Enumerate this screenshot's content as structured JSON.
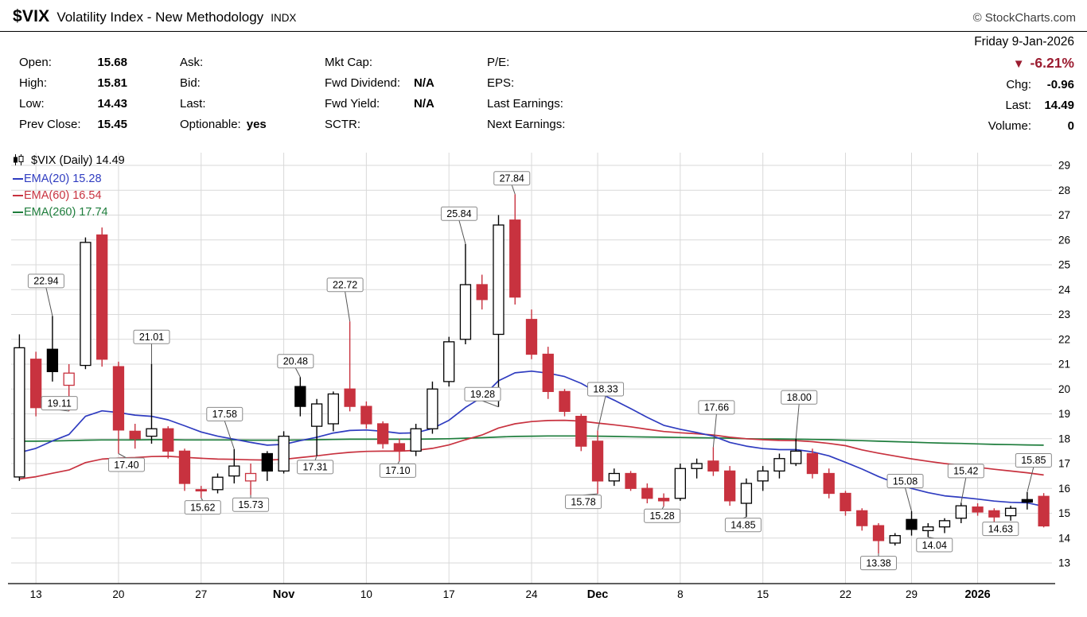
{
  "header": {
    "symbol": "$VIX",
    "name": "Volatility Index - New Methodology",
    "exchange": "INDX",
    "credit": "© StockCharts.com",
    "date": "Friday 9-Jan-2026"
  },
  "quote": {
    "col1": [
      {
        "label": "Open:",
        "value": "15.68"
      },
      {
        "label": "High:",
        "value": "15.81"
      },
      {
        "label": "Low:",
        "value": "14.43"
      },
      {
        "label": "Prev Close:",
        "value": "15.45"
      }
    ],
    "col2": [
      {
        "label": "Ask:",
        "value": ""
      },
      {
        "label": "Bid:",
        "value": ""
      },
      {
        "label": "Last:",
        "value": ""
      },
      {
        "label": "Optionable:",
        "value": "yes"
      }
    ],
    "col3": [
      {
        "label": "Mkt Cap:",
        "value": ""
      },
      {
        "label": "Fwd Dividend:",
        "value": "N/A"
      },
      {
        "label": "Fwd Yield:",
        "value": "N/A"
      },
      {
        "label": "SCTR:",
        "value": ""
      }
    ],
    "col4": [
      {
        "label": "P/E:",
        "value": ""
      },
      {
        "label": "EPS:",
        "value": ""
      },
      {
        "label": "Last Earnings:",
        "value": ""
      },
      {
        "label": "Next Earnings:",
        "value": ""
      }
    ],
    "change": {
      "arrow": "▼",
      "pct": "-6.21%",
      "color": "#9b1c30",
      "rows": [
        {
          "label": "Chg:",
          "value": "-0.96"
        },
        {
          "label": "Last:",
          "value": "14.49"
        },
        {
          "label": "Volume:",
          "value": "0"
        }
      ]
    }
  },
  "legend": {
    "main": "$VIX (Daily) 14.49",
    "emas": [
      {
        "label": "EMA(20) 15.28",
        "color": "#2f3cc0"
      },
      {
        "label": "EMA(60) 16.54",
        "color": "#c8323f"
      },
      {
        "label": "EMA(260) 17.74",
        "color": "#1e7d3c"
      }
    ]
  },
  "chart_data": {
    "type": "candlestick",
    "title": "$VIX (Daily)",
    "y_min": 13,
    "y_max": 29,
    "ylim": [
      12.2,
      29.6
    ],
    "grid": true,
    "colors": {
      "down": "#c8323f",
      "up_fill": "#ffffff",
      "black": "#000000",
      "grid": "#d9d9d9",
      "axis": "#000000",
      "annot_border": "#8a8a8a",
      "leader": "#555555"
    },
    "x_ticks": [
      {
        "i": 1,
        "label": "13"
      },
      {
        "i": 6,
        "label": "20"
      },
      {
        "i": 11,
        "label": "27"
      },
      {
        "i": 16,
        "label": "Nov",
        "bold": true
      },
      {
        "i": 21,
        "label": "10"
      },
      {
        "i": 26,
        "label": "17"
      },
      {
        "i": 31,
        "label": "24"
      },
      {
        "i": 35,
        "label": "Dec",
        "bold": true
      },
      {
        "i": 40,
        "label": "8"
      },
      {
        "i": 45,
        "label": "15"
      },
      {
        "i": 50,
        "label": "22"
      },
      {
        "i": 54,
        "label": "29"
      },
      {
        "i": 58,
        "label": "2026",
        "bold": true
      }
    ],
    "candles": [
      [
        "10 Oct",
        16.46,
        22.2,
        16.3,
        21.66,
        "w"
      ],
      [
        "13 Oct",
        21.2,
        21.5,
        18.9,
        19.25,
        "r"
      ],
      [
        "14 Oct",
        21.6,
        22.94,
        20.3,
        20.7,
        "b"
      ],
      [
        "15 Oct",
        20.15,
        21.0,
        19.11,
        20.64,
        "rh"
      ],
      [
        "16 Oct",
        20.95,
        26.1,
        20.8,
        25.9,
        "w"
      ],
      [
        "17 Oct",
        26.2,
        26.5,
        20.9,
        21.2,
        "r"
      ],
      [
        "20 Oct",
        20.9,
        21.1,
        17.4,
        18.35,
        "r"
      ],
      [
        "21 Oct",
        18.3,
        18.6,
        17.6,
        18.0,
        "r"
      ],
      [
        "22 Oct",
        18.1,
        21.01,
        17.8,
        18.4,
        "w"
      ],
      [
        "23 Oct",
        18.4,
        18.5,
        17.2,
        17.5,
        "r"
      ],
      [
        "24 Oct",
        17.5,
        17.6,
        15.9,
        16.2,
        "r"
      ],
      [
        "27 Oct",
        15.95,
        16.1,
        15.62,
        15.9,
        "r"
      ],
      [
        "28 Oct",
        15.95,
        16.6,
        15.8,
        16.45,
        "w"
      ],
      [
        "29 Oct",
        16.5,
        17.58,
        16.2,
        16.9,
        "w"
      ],
      [
        "30 Oct",
        16.3,
        17.0,
        15.73,
        16.6,
        "rh"
      ],
      [
        "31 Oct",
        17.4,
        17.5,
        16.3,
        16.7,
        "b"
      ],
      [
        "3 Nov",
        16.7,
        18.3,
        16.6,
        18.1,
        "w"
      ],
      [
        "4 Nov",
        20.1,
        20.48,
        18.9,
        19.3,
        "b"
      ],
      [
        "5 Nov",
        18.5,
        19.6,
        17.31,
        19.4,
        "w"
      ],
      [
        "6 Nov",
        18.6,
        19.9,
        18.3,
        19.8,
        "w"
      ],
      [
        "7 Nov",
        20.0,
        22.72,
        19.1,
        19.3,
        "r"
      ],
      [
        "10 Nov",
        19.3,
        19.5,
        18.4,
        18.6,
        "r"
      ],
      [
        "11 Nov",
        18.6,
        18.7,
        17.6,
        17.8,
        "r"
      ],
      [
        "12 Nov",
        17.8,
        18.0,
        17.1,
        17.5,
        "r"
      ],
      [
        "13 Nov",
        17.5,
        18.6,
        17.3,
        18.4,
        "w"
      ],
      [
        "14 Nov",
        18.4,
        20.3,
        18.2,
        20.0,
        "w"
      ],
      [
        "17 Nov",
        20.3,
        22.1,
        20.1,
        21.9,
        "w"
      ],
      [
        "18 Nov",
        22.0,
        25.84,
        21.8,
        24.2,
        "w"
      ],
      [
        "19 Nov",
        24.2,
        24.6,
        23.2,
        23.6,
        "r"
      ],
      [
        "20 Nov",
        22.2,
        27.0,
        19.28,
        26.6,
        "w"
      ],
      [
        "21 Nov",
        26.8,
        27.84,
        23.4,
        23.7,
        "r"
      ],
      [
        "24 Nov",
        22.8,
        23.2,
        21.2,
        21.4,
        "r"
      ],
      [
        "25 Nov",
        21.4,
        21.7,
        19.6,
        19.9,
        "r"
      ],
      [
        "26 Nov",
        19.9,
        20.0,
        18.9,
        19.1,
        "r"
      ],
      [
        "28 Nov",
        18.9,
        19.0,
        17.5,
        17.7,
        "r"
      ],
      [
        "1 Dec",
        17.9,
        18.33,
        15.78,
        16.3,
        "r"
      ],
      [
        "2 Dec",
        16.3,
        16.8,
        16.1,
        16.6,
        "w"
      ],
      [
        "3 Dec",
        16.6,
        16.7,
        15.9,
        16.0,
        "r"
      ],
      [
        "4 Dec",
        16.0,
        16.2,
        15.4,
        15.6,
        "r"
      ],
      [
        "5 Dec",
        15.6,
        15.8,
        15.28,
        15.5,
        "r"
      ],
      [
        "8 Dec",
        15.6,
        17.0,
        15.5,
        16.8,
        "w"
      ],
      [
        "9 Dec",
        16.8,
        17.2,
        16.4,
        17.0,
        "w"
      ],
      [
        "10 Dec",
        17.1,
        17.66,
        16.5,
        16.7,
        "r"
      ],
      [
        "11 Dec",
        16.7,
        16.9,
        15.3,
        15.5,
        "r"
      ],
      [
        "12 Dec",
        15.4,
        16.4,
        14.85,
        16.2,
        "w"
      ],
      [
        "15 Dec",
        16.3,
        16.9,
        15.9,
        16.7,
        "w"
      ],
      [
        "16 Dec",
        16.7,
        17.4,
        16.4,
        17.2,
        "w"
      ],
      [
        "17 Dec",
        17.0,
        18.0,
        16.9,
        17.5,
        "w"
      ],
      [
        "18 Dec",
        17.4,
        17.6,
        16.4,
        16.6,
        "r"
      ],
      [
        "19 Dec",
        16.6,
        16.8,
        15.6,
        15.8,
        "r"
      ],
      [
        "22 Dec",
        15.8,
        15.9,
        14.9,
        15.1,
        "r"
      ],
      [
        "23 Dec",
        15.1,
        15.2,
        14.3,
        14.5,
        "r"
      ],
      [
        "24 Dec",
        14.5,
        14.6,
        13.38,
        13.9,
        "r"
      ],
      [
        "26 Dec",
        13.8,
        14.2,
        13.7,
        14.1,
        "w"
      ],
      [
        "29 Dec",
        14.75,
        15.08,
        14.1,
        14.35,
        "b"
      ],
      [
        "30 Dec",
        14.3,
        14.6,
        14.04,
        14.45,
        "w"
      ],
      [
        "31 Dec",
        14.45,
        14.8,
        14.2,
        14.7,
        "w"
      ],
      [
        "2 Jan",
        14.8,
        15.42,
        14.6,
        15.3,
        "w"
      ],
      [
        "5 Jan",
        15.25,
        15.4,
        14.9,
        15.05,
        "r"
      ],
      [
        "6 Jan",
        15.1,
        15.2,
        14.63,
        14.85,
        "r"
      ],
      [
        "7 Jan",
        14.9,
        15.3,
        14.7,
        15.2,
        "w"
      ],
      [
        "8 Jan",
        15.55,
        15.85,
        15.15,
        15.45,
        "b"
      ],
      [
        "9 Jan",
        15.68,
        15.81,
        14.43,
        14.49,
        "r"
      ]
    ],
    "ema20": [
      17.44,
      17.61,
      17.91,
      18.17,
      18.9,
      19.12,
      19.05,
      18.95,
      18.9,
      18.76,
      18.52,
      18.27,
      18.1,
      17.98,
      17.85,
      17.74,
      17.77,
      17.92,
      18.06,
      18.23,
      18.33,
      18.35,
      18.3,
      18.22,
      18.24,
      18.41,
      18.74,
      19.26,
      19.67,
      20.33,
      20.65,
      20.72,
      20.64,
      20.5,
      20.23,
      19.86,
      19.55,
      19.21,
      18.86,
      18.54,
      18.38,
      18.25,
      18.1,
      17.85,
      17.7,
      17.6,
      17.56,
      17.56,
      17.47,
      17.31,
      17.05,
      16.78,
      16.48,
      16.22,
      16.0,
      15.83,
      15.7,
      15.64,
      15.57,
      15.49,
      15.44,
      15.42,
      15.28
    ],
    "ema60": [
      16.38,
      16.47,
      16.61,
      16.74,
      17.04,
      17.18,
      17.22,
      17.24,
      17.28,
      17.29,
      17.25,
      17.21,
      17.18,
      17.17,
      17.15,
      17.14,
      17.17,
      17.24,
      17.31,
      17.39,
      17.45,
      17.49,
      17.5,
      17.5,
      17.53,
      17.61,
      17.75,
      17.96,
      18.15,
      18.43,
      18.6,
      18.69,
      18.73,
      18.74,
      18.71,
      18.63,
      18.56,
      18.48,
      18.38,
      18.29,
      18.24,
      18.2,
      18.15,
      18.06,
      18.0,
      17.96,
      17.93,
      17.92,
      17.88,
      17.81,
      17.72,
      17.55,
      17.42,
      17.3,
      17.19,
      17.09,
      17.0,
      16.93,
      16.85,
      16.77,
      16.7,
      16.63,
      16.54
    ],
    "ema260": [
      17.9,
      17.9,
      17.91,
      17.92,
      17.94,
      17.95,
      17.95,
      17.95,
      17.96,
      17.96,
      17.95,
      17.95,
      17.95,
      17.95,
      17.94,
      17.94,
      17.94,
      17.95,
      17.96,
      17.97,
      17.98,
      17.98,
      17.98,
      17.98,
      17.98,
      17.99,
      18.0,
      18.02,
      18.04,
      18.07,
      18.09,
      18.1,
      18.11,
      18.11,
      18.11,
      18.1,
      18.09,
      18.08,
      18.07,
      18.06,
      18.05,
      18.04,
      18.03,
      18.02,
      18.0,
      17.99,
      17.99,
      17.98,
      17.97,
      17.96,
      17.94,
      17.92,
      17.9,
      17.88,
      17.86,
      17.84,
      17.82,
      17.81,
      17.79,
      17.77,
      17.76,
      17.75,
      17.74
    ],
    "annotations": [
      {
        "label": "22.94",
        "i": 2,
        "point": "high",
        "side": "above",
        "gap": 44,
        "dx": -8
      },
      {
        "label": "19.11",
        "i": 3,
        "point": "low",
        "side": "above",
        "gap": 10,
        "dx": -12
      },
      {
        "label": "21.01",
        "i": 8,
        "point": "high",
        "side": "above",
        "gap": 34,
        "dx": 0
      },
      {
        "label": "17.40",
        "i": 6,
        "point": "low",
        "side": "below",
        "gap": 14,
        "dx": 10
      },
      {
        "label": "15.62",
        "i": 11,
        "point": "low",
        "side": "below",
        "gap": 12,
        "dx": 2
      },
      {
        "label": "17.58",
        "i": 13,
        "point": "high",
        "side": "above",
        "gap": 44,
        "dx": -12
      },
      {
        "label": "15.73",
        "i": 14,
        "point": "low",
        "side": "below",
        "gap": 12,
        "dx": 0
      },
      {
        "label": "20.48",
        "i": 17,
        "point": "high",
        "side": "above",
        "gap": 20,
        "dx": -6
      },
      {
        "label": "17.31",
        "i": 18,
        "point": "low",
        "side": "below",
        "gap": 14,
        "dx": -2
      },
      {
        "label": "22.72",
        "i": 20,
        "point": "high",
        "side": "above",
        "gap": 46,
        "dx": -6
      },
      {
        "label": "17.10",
        "i": 23,
        "point": "low",
        "side": "below",
        "gap": 12,
        "dx": -2
      },
      {
        "label": "25.84",
        "i": 27,
        "point": "high",
        "side": "above",
        "gap": 38,
        "dx": -8
      },
      {
        "label": "27.84",
        "i": 30,
        "point": "high",
        "side": "above",
        "gap": 20,
        "dx": -4
      },
      {
        "label": "19.28",
        "i": 29,
        "point": "low",
        "side": "above",
        "gap": 16,
        "dx": -20
      },
      {
        "label": "18.33",
        "i": 35,
        "point": "high",
        "side": "above",
        "gap": 52,
        "dx": 10
      },
      {
        "label": "15.78",
        "i": 35,
        "point": "low",
        "side": "below",
        "gap": 10,
        "dx": -18
      },
      {
        "label": "15.28",
        "i": 39,
        "point": "low",
        "side": "below",
        "gap": 12,
        "dx": -2
      },
      {
        "label": "17.66",
        "i": 42,
        "point": "high",
        "side": "above",
        "gap": 50,
        "dx": 4
      },
      {
        "label": "14.85",
        "i": 44,
        "point": "low",
        "side": "below",
        "gap": 10,
        "dx": -4
      },
      {
        "label": "18.00",
        "i": 47,
        "point": "high",
        "side": "above",
        "gap": 52,
        "dx": 4
      },
      {
        "label": "13.38",
        "i": 52,
        "point": "low",
        "side": "below",
        "gap": 12,
        "dx": 0
      },
      {
        "label": "15.08",
        "i": 54,
        "point": "high",
        "side": "above",
        "gap": 38,
        "dx": -8
      },
      {
        "label": "14.04",
        "i": 55,
        "point": "low",
        "side": "below",
        "gap": 10,
        "dx": 8
      },
      {
        "label": "15.42",
        "i": 57,
        "point": "high",
        "side": "above",
        "gap": 40,
        "dx": 6
      },
      {
        "label": "14.63",
        "i": 59,
        "point": "low",
        "side": "below",
        "gap": 8,
        "dx": 8
      },
      {
        "label": "15.85",
        "i": 61,
        "point": "high",
        "side": "above",
        "gap": 40,
        "dx": 8
      }
    ]
  }
}
